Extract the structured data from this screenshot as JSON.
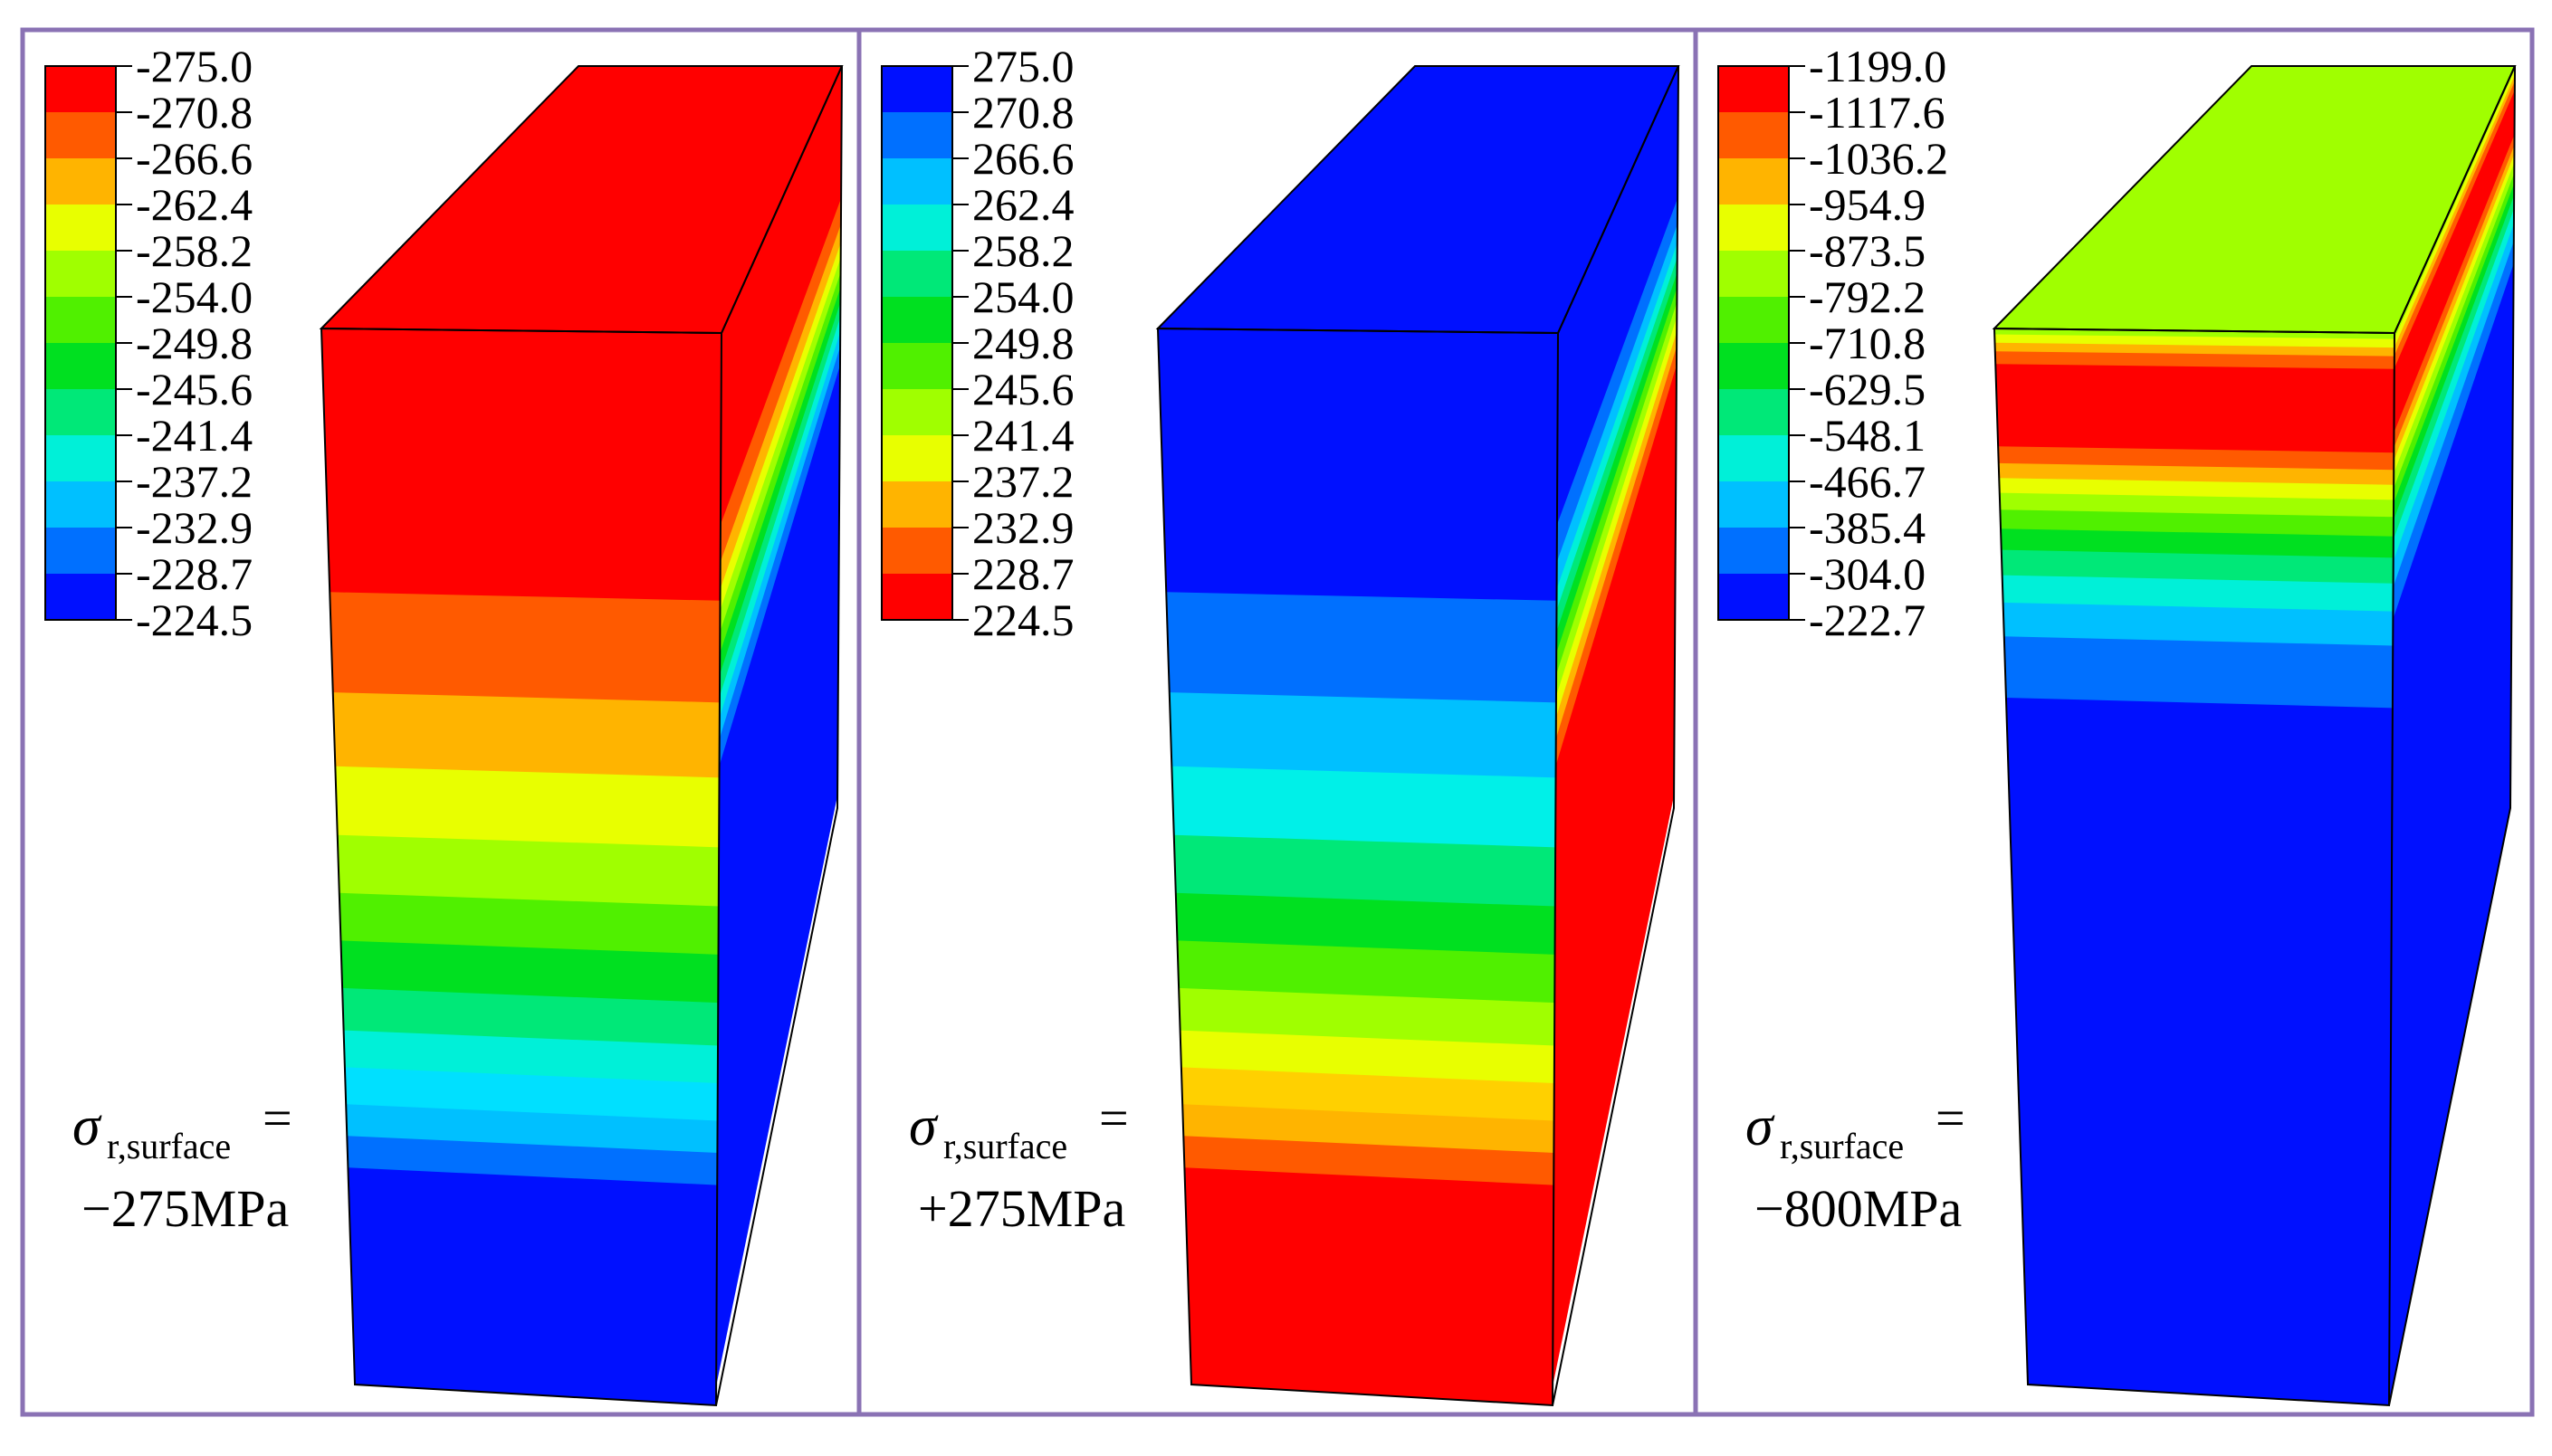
{
  "colors": {
    "frame": "#8a72b4",
    "edge": "#000000",
    "palette_rainbow": [
      "#ff0000",
      "#ff5a00",
      "#ffb400",
      "#e8ff00",
      "#a0ff00",
      "#50f000",
      "#00e020",
      "#00e878",
      "#00f0d8",
      "#00c0ff",
      "#0070ff",
      "#0010ff"
    ]
  },
  "panels": [
    {
      "id": "panel-1",
      "legend": {
        "ticks": [
          "-275.0",
          "-270.8",
          "-266.6",
          "-262.4",
          "-258.2",
          "-254.0",
          "-249.8",
          "-245.6",
          "-241.4",
          "-237.2",
          "-232.9",
          "-228.7",
          "-224.5"
        ],
        "colors": [
          "#ff0000",
          "#ff5a00",
          "#ffb400",
          "#e8ff00",
          "#a0ff00",
          "#50f000",
          "#00e020",
          "#00e878",
          "#00f0d8",
          "#00c0ff",
          "#0070ff",
          "#0010ff"
        ]
      },
      "label": {
        "symbol": "σ",
        "subscript": "r,surface",
        "equals": "=",
        "value": "−275MPa"
      },
      "block": {
        "top_color": "#ff0000",
        "front_bands": [
          {
            "color": "#ff0000",
            "frac": 0.25
          },
          {
            "color": "#ff5a00",
            "frac": 0.095
          },
          {
            "color": "#ffb400",
            "frac": 0.07
          },
          {
            "color": "#e8ff00",
            "frac": 0.065
          },
          {
            "color": "#a0ff00",
            "frac": 0.055
          },
          {
            "color": "#50f000",
            "frac": 0.045
          },
          {
            "color": "#00e020",
            "frac": 0.045
          },
          {
            "color": "#00e878",
            "frac": 0.04
          },
          {
            "color": "#00f0d8",
            "frac": 0.035
          },
          {
            "color": "#00e0ff",
            "frac": 0.035
          },
          {
            "color": "#00c0ff",
            "frac": 0.03
          },
          {
            "color": "#0070ff",
            "frac": 0.03
          },
          {
            "color": "#0010ff",
            "frac": 0.205
          }
        ],
        "side_bands": [
          {
            "color": "#ff0000",
            "frac": 0.18
          },
          {
            "color": "#ff5a00",
            "frac": 0.035
          },
          {
            "color": "#ffb400",
            "frac": 0.025
          },
          {
            "color": "#e8ff00",
            "frac": 0.02
          },
          {
            "color": "#a0ff00",
            "frac": 0.02
          },
          {
            "color": "#50f000",
            "frac": 0.02
          },
          {
            "color": "#00e020",
            "frac": 0.02
          },
          {
            "color": "#00e878",
            "frac": 0.02
          },
          {
            "color": "#00f0d8",
            "frac": 0.02
          },
          {
            "color": "#00c0ff",
            "frac": 0.02
          },
          {
            "color": "#0070ff",
            "frac": 0.025
          },
          {
            "color": "#0010ff",
            "frac": 0.575
          }
        ]
      }
    },
    {
      "id": "panel-2",
      "legend": {
        "ticks": [
          "275.0",
          "270.8",
          "266.6",
          "262.4",
          "258.2",
          "254.0",
          "249.8",
          "245.6",
          "241.4",
          "237.2",
          "232.9",
          "228.7",
          "224.5"
        ],
        "colors": [
          "#0010ff",
          "#0070ff",
          "#00c0ff",
          "#00f0d8",
          "#00e878",
          "#00e020",
          "#50f000",
          "#a0ff00",
          "#e8ff00",
          "#ffb400",
          "#ff5a00",
          "#ff0000"
        ]
      },
      "label": {
        "symbol": "σ",
        "subscript": "r,surface",
        "equals": "=",
        "value": "+275MPa"
      },
      "block": {
        "top_color": "#0010ff",
        "front_bands": [
          {
            "color": "#0010ff",
            "frac": 0.25
          },
          {
            "color": "#0070ff",
            "frac": 0.095
          },
          {
            "color": "#00c0ff",
            "frac": 0.07
          },
          {
            "color": "#00f0e8",
            "frac": 0.065
          },
          {
            "color": "#00e878",
            "frac": 0.055
          },
          {
            "color": "#00e020",
            "frac": 0.045
          },
          {
            "color": "#50f000",
            "frac": 0.045
          },
          {
            "color": "#a0ff00",
            "frac": 0.04
          },
          {
            "color": "#e8ff00",
            "frac": 0.035
          },
          {
            "color": "#ffd000",
            "frac": 0.035
          },
          {
            "color": "#ffb400",
            "frac": 0.03
          },
          {
            "color": "#ff5a00",
            "frac": 0.03
          },
          {
            "color": "#ff0000",
            "frac": 0.205
          }
        ],
        "side_bands": [
          {
            "color": "#0010ff",
            "frac": 0.18
          },
          {
            "color": "#0070ff",
            "frac": 0.035
          },
          {
            "color": "#00c0ff",
            "frac": 0.025
          },
          {
            "color": "#00f0d8",
            "frac": 0.02
          },
          {
            "color": "#00e878",
            "frac": 0.02
          },
          {
            "color": "#00e020",
            "frac": 0.02
          },
          {
            "color": "#50f000",
            "frac": 0.02
          },
          {
            "color": "#a0ff00",
            "frac": 0.02
          },
          {
            "color": "#e8ff00",
            "frac": 0.02
          },
          {
            "color": "#ffb400",
            "frac": 0.02
          },
          {
            "color": "#ff5a00",
            "frac": 0.025
          },
          {
            "color": "#ff0000",
            "frac": 0.575
          }
        ]
      }
    },
    {
      "id": "panel-3",
      "legend": {
        "ticks": [
          "-1199.0",
          "-1117.6",
          "-1036.2",
          "-954.9",
          "-873.5",
          "-792.2",
          "-710.8",
          "-629.5",
          "-548.1",
          "-466.7",
          "-385.4",
          "-304.0",
          "-222.7"
        ],
        "colors": [
          "#ff0000",
          "#ff5a00",
          "#ffb400",
          "#e8ff00",
          "#a0ff00",
          "#50f000",
          "#00e020",
          "#00e878",
          "#00f0d8",
          "#00c0ff",
          "#0070ff",
          "#0010ff"
        ]
      },
      "label": {
        "symbol": "σ",
        "subscript": "r,surface",
        "equals": "=",
        "value": "−800MPa"
      },
      "block": {
        "top_color": "#a0ff00",
        "front_bands": [
          {
            "color": "#a0ff00",
            "frac": 0.006
          },
          {
            "color": "#e8ff00",
            "frac": 0.008
          },
          {
            "color": "#ffb400",
            "frac": 0.008
          },
          {
            "color": "#ff5a00",
            "frac": 0.012
          },
          {
            "color": "#ff0000",
            "frac": 0.078
          },
          {
            "color": "#ff5a00",
            "frac": 0.016
          },
          {
            "color": "#ffb400",
            "frac": 0.014
          },
          {
            "color": "#e8ff00",
            "frac": 0.014
          },
          {
            "color": "#a0ff00",
            "frac": 0.016
          },
          {
            "color": "#50f000",
            "frac": 0.018
          },
          {
            "color": "#00e020",
            "frac": 0.02
          },
          {
            "color": "#00e878",
            "frac": 0.024
          },
          {
            "color": "#00f0d8",
            "frac": 0.026
          },
          {
            "color": "#00c0ff",
            "frac": 0.032
          },
          {
            "color": "#0070ff",
            "frac": 0.058
          },
          {
            "color": "#0010ff",
            "frac": 0.65
          }
        ],
        "side_bands": [
          {
            "color": "#a0ff00",
            "frac": 0.006
          },
          {
            "color": "#e8ff00",
            "frac": 0.008
          },
          {
            "color": "#ffb400",
            "frac": 0.008
          },
          {
            "color": "#ff5a00",
            "frac": 0.012
          },
          {
            "color": "#ff0000",
            "frac": 0.06
          },
          {
            "color": "#ff5a00",
            "frac": 0.014
          },
          {
            "color": "#ffb400",
            "frac": 0.012
          },
          {
            "color": "#e8ff00",
            "frac": 0.012
          },
          {
            "color": "#a0ff00",
            "frac": 0.014
          },
          {
            "color": "#50f000",
            "frac": 0.014
          },
          {
            "color": "#00e020",
            "frac": 0.016
          },
          {
            "color": "#00e878",
            "frac": 0.018
          },
          {
            "color": "#00f0d8",
            "frac": 0.02
          },
          {
            "color": "#00c0ff",
            "frac": 0.024
          },
          {
            "color": "#0070ff",
            "frac": 0.03
          },
          {
            "color": "#0010ff",
            "frac": 0.732
          }
        ]
      }
    }
  ]
}
